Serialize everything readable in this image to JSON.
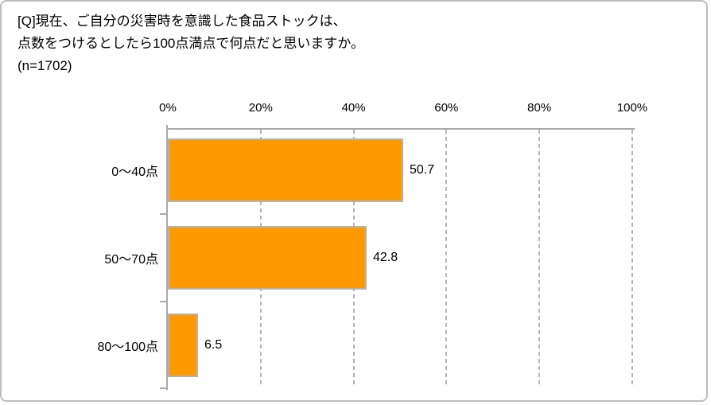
{
  "window": {
    "background": "#FFFFFF",
    "border_color": "#BDBDBD"
  },
  "title": {
    "line1": "[Q]現在、ご自分の災害時を意識した食品ストックは、",
    "line2": "点数をつけるとしたら100点満点で何点だと思いますか。",
    "line3": "(n=1702)"
  },
  "chart_data": {
    "type": "bar",
    "orientation": "horizontal",
    "title": "[Q]現在、ご自分の災害時を意識した食品ストックは、点数をつけるとしたら100点満点で何点だと思いますか。",
    "sample_size_label": "(n=1702)",
    "categories": [
      "0〜40点",
      "50〜70点",
      "80〜100点"
    ],
    "values": [
      50.7,
      42.8,
      6.5
    ],
    "value_labels": [
      "50.7",
      "42.8",
      "6.5"
    ],
    "x_axis": {
      "position": "top",
      "min": 0,
      "max": 100,
      "tick_values": [
        0,
        20,
        40,
        60,
        80,
        100
      ],
      "tick_labels": [
        "0%",
        "20%",
        "40%",
        "60%",
        "80%",
        "100%"
      ]
    },
    "grid": "vertical-dashed",
    "legend": "none",
    "colors": {
      "bar_fill": "#FF9900",
      "bar_border": "#B3B3B3",
      "axis_line": "#A9A9A9",
      "gridline": "#B4B4B4",
      "text": "#000000"
    }
  }
}
